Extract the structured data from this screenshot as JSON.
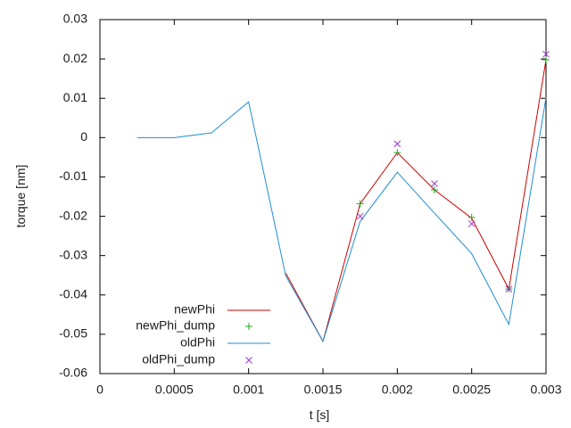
{
  "chart_data": {
    "type": "line",
    "xlabel": "t [s]",
    "ylabel": "torque [nm]",
    "xlim": [
      0,
      0.003
    ],
    "ylim": [
      -0.06,
      0.03
    ],
    "x_ticks": [
      0,
      0.0005,
      0.001,
      0.0015,
      0.002,
      0.0025,
      0.003
    ],
    "x_tick_labels": [
      "0",
      "0.0005",
      "0.001",
      "0.0015",
      "0.002",
      "0.0025",
      "0.003"
    ],
    "y_ticks": [
      0.03,
      0.02,
      0.01,
      0,
      -0.01,
      -0.02,
      -0.03,
      -0.04,
      -0.05,
      -0.06
    ],
    "y_tick_labels": [
      "0.03",
      "0.02",
      "0.01",
      "0",
      "-0.01",
      "-0.02",
      "-0.03",
      "-0.04",
      "-0.05",
      "-0.06"
    ],
    "grid": false,
    "legend_position": "bottom-left",
    "series": [
      {
        "name": "newPhi",
        "style": "line",
        "color": "#cc0000",
        "x": [
          0.00125,
          0.0015,
          0.00175,
          0.002,
          0.00225,
          0.0025,
          0.00275,
          0.003
        ],
        "y": [
          -0.0345,
          -0.0518,
          -0.0168,
          -0.0038,
          -0.0133,
          -0.0205,
          -0.0385,
          0.0198
        ]
      },
      {
        "name": "newPhi_dump",
        "style": "plus",
        "color": "#22aa22",
        "x": [
          0.00175,
          0.002,
          0.00225,
          0.0025,
          0.00275,
          0.003
        ],
        "y": [
          -0.0168,
          -0.0038,
          -0.0133,
          -0.0203,
          -0.0385,
          0.0198
        ]
      },
      {
        "name": "oldPhi",
        "style": "line",
        "color": "#1f8fd0",
        "x": [
          0.00025,
          0.0005,
          0.00075,
          0.001,
          0.00125,
          0.0015,
          0.00175,
          0.002,
          0.00225,
          0.0025,
          0.00275,
          0.003
        ],
        "y": [
          0,
          0,
          0.0012,
          0.0091,
          -0.0352,
          -0.0518,
          -0.0213,
          -0.0088,
          -0.0192,
          -0.0295,
          -0.0475,
          0.0102
        ]
      },
      {
        "name": "oldPhi_dump",
        "style": "cross",
        "color": "#9933cc",
        "x": [
          0.00175,
          0.002,
          0.00225,
          0.0025,
          0.00275,
          0.003
        ],
        "y": [
          -0.02,
          -0.0016,
          -0.0117,
          -0.0219,
          -0.0385,
          0.0212
        ]
      }
    ]
  }
}
